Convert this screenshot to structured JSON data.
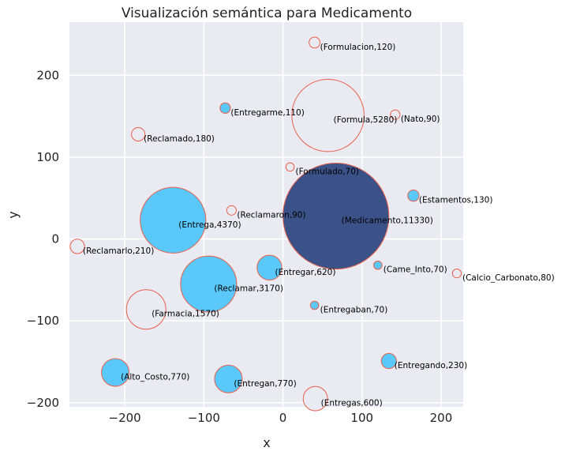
{
  "chart_data": {
    "type": "scatter",
    "title": "Visualización semántica para Medicamento",
    "xlabel": "x",
    "ylabel": "y",
    "xlim": [
      -270,
      228
    ],
    "ylim": [
      -205,
      265
    ],
    "xticks": [
      -200,
      -100,
      0,
      100,
      200
    ],
    "yticks": [
      -200,
      -100,
      0,
      100,
      200
    ],
    "xtick_labels": [
      "−200",
      "−100",
      "0",
      "100",
      "200"
    ],
    "ytick_labels": [
      "−200",
      "−100",
      "0",
      "100",
      "200"
    ],
    "grid": true,
    "colors": {
      "plot_bg": "#eaeaf2",
      "grid": "#ffffff",
      "edge": "#e8604a",
      "filled": "#5ac8fa",
      "highlight": "#3b5289",
      "hollow": "#eaeaf2"
    },
    "points": [
      {
        "label": "(Formulacion,120)",
        "x": 40,
        "y": 240,
        "size": 120,
        "style": "hollow"
      },
      {
        "label": "(Entregarme,110)",
        "x": -73,
        "y": 160,
        "size": 110,
        "style": "filled"
      },
      {
        "label": "(Formula,5280)",
        "x": 57,
        "y": 151,
        "size": 5280,
        "style": "hollow"
      },
      {
        "label": "(Nato,90)",
        "x": 142,
        "y": 152,
        "size": 90,
        "style": "hollow"
      },
      {
        "label": "(Reclamado,180)",
        "x": -183,
        "y": 128,
        "size": 180,
        "style": "hollow"
      },
      {
        "label": "(Formulado,70)",
        "x": 9,
        "y": 88,
        "size": 70,
        "style": "hollow"
      },
      {
        "label": "(Estamentos,130)",
        "x": 165,
        "y": 53,
        "size": 130,
        "style": "filled"
      },
      {
        "label": "(Reclamaron,90)",
        "x": -65,
        "y": 35,
        "size": 90,
        "style": "hollow"
      },
      {
        "label": "(Medicamento,11330)",
        "x": 67,
        "y": 28,
        "size": 11330,
        "style": "highlight"
      },
      {
        "label": "(Entrega,4370)",
        "x": -139,
        "y": 23,
        "size": 4370,
        "style": "filled"
      },
      {
        "label": "(Reclamarlo,210)",
        "x": -260,
        "y": -9,
        "size": 210,
        "style": "hollow"
      },
      {
        "label": "(Came_Into,70)",
        "x": 120,
        "y": -32,
        "size": 70,
        "style": "filled"
      },
      {
        "label": "(Entregar,620)",
        "x": -17,
        "y": -35,
        "size": 620,
        "style": "filled"
      },
      {
        "label": "(Calcio_Carbonato,80)",
        "x": 220,
        "y": -42,
        "size": 80,
        "style": "hollow"
      },
      {
        "label": "(Reclamar,3170)",
        "x": -94,
        "y": -55,
        "size": 3170,
        "style": "filled"
      },
      {
        "label": "(Entregaban,70)",
        "x": 40,
        "y": -81,
        "size": 70,
        "style": "filled"
      },
      {
        "label": "(Farmacia,1570)",
        "x": -173,
        "y": -86,
        "size": 1570,
        "style": "hollow"
      },
      {
        "label": "(Entregando,230)",
        "x": 134,
        "y": -149,
        "size": 230,
        "style": "filled"
      },
      {
        "label": "(Alto_Costo,770)",
        "x": -212,
        "y": -163,
        "size": 770,
        "style": "filled"
      },
      {
        "label": "(Entregan,770)",
        "x": -69,
        "y": -171,
        "size": 770,
        "style": "filled"
      },
      {
        "label": "(Entregas,600)",
        "x": 41,
        "y": -195,
        "size": 600,
        "style": "hollow"
      }
    ]
  }
}
